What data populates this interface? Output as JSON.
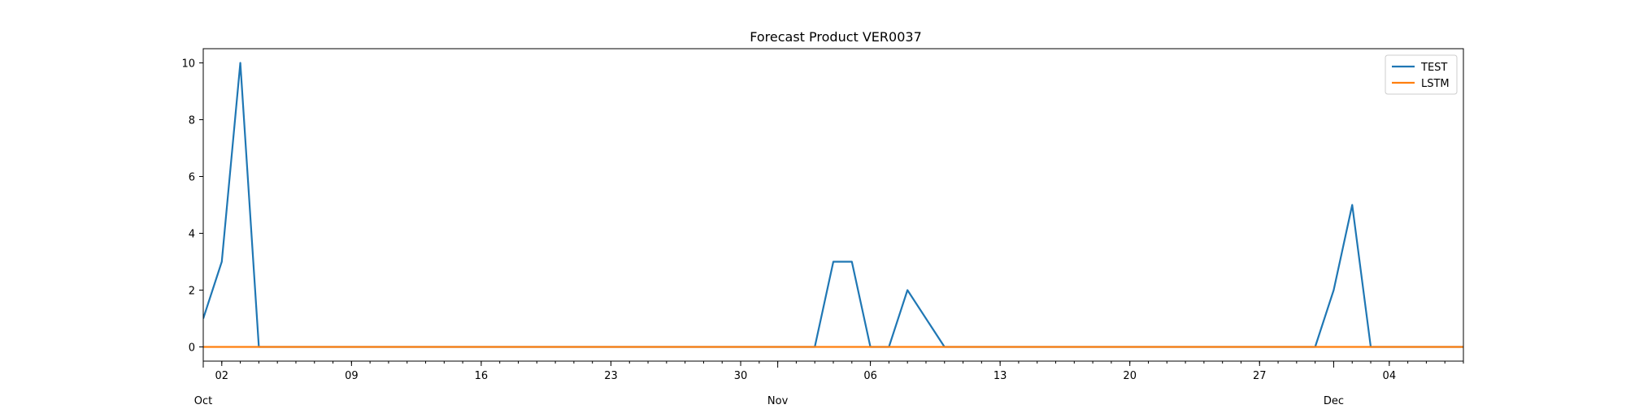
{
  "chart_data": {
    "type": "line",
    "title": "Forecast Product VER0037",
    "xlabel": "",
    "ylabel": "",
    "x_start": "2023-10-01",
    "x_end": "2023-12-08",
    "xlim": [
      "2023-10-01",
      "2023-12-08"
    ],
    "ylim": [
      -0.5,
      10.5
    ],
    "y_ticks": [
      0,
      2,
      4,
      6,
      8,
      10
    ],
    "x_major_ticks": [
      {
        "date": "2023-10-02",
        "label": "02"
      },
      {
        "date": "2023-10-09",
        "label": "09"
      },
      {
        "date": "2023-10-16",
        "label": "16"
      },
      {
        "date": "2023-10-23",
        "label": "23"
      },
      {
        "date": "2023-10-30",
        "label": "30"
      },
      {
        "date": "2023-11-06",
        "label": "06"
      },
      {
        "date": "2023-11-13",
        "label": "13"
      },
      {
        "date": "2023-11-20",
        "label": "20"
      },
      {
        "date": "2023-11-27",
        "label": "27"
      },
      {
        "date": "2023-12-04",
        "label": "04"
      }
    ],
    "month_labels": [
      {
        "date": "2023-10-01",
        "label": "Oct"
      },
      {
        "date": "2023-11-01",
        "label": "Nov"
      },
      {
        "date": "2023-12-01",
        "label": "Dec"
      }
    ],
    "grid": false,
    "legend_position": "top-right",
    "series": [
      {
        "name": "TEST",
        "color": "#1f77b4",
        "points": [
          {
            "x": "2023-10-01",
            "y": 1
          },
          {
            "x": "2023-10-02",
            "y": 3
          },
          {
            "x": "2023-10-03",
            "y": 10
          },
          {
            "x": "2023-10-04",
            "y": 0
          },
          {
            "x": "2023-11-03",
            "y": 0
          },
          {
            "x": "2023-11-04",
            "y": 3
          },
          {
            "x": "2023-11-05",
            "y": 3
          },
          {
            "x": "2023-11-06",
            "y": 0
          },
          {
            "x": "2023-11-07",
            "y": 0
          },
          {
            "x": "2023-11-08",
            "y": 2
          },
          {
            "x": "2023-11-10",
            "y": 0
          },
          {
            "x": "2023-11-30",
            "y": 0
          },
          {
            "x": "2023-12-01",
            "y": 2
          },
          {
            "x": "2023-12-02",
            "y": 5
          },
          {
            "x": "2023-12-03",
            "y": 0
          },
          {
            "x": "2023-12-08",
            "y": 0
          }
        ]
      },
      {
        "name": "LSTM",
        "color": "#ff7f0e",
        "points": [
          {
            "x": "2023-10-01",
            "y": 0
          },
          {
            "x": "2023-12-08",
            "y": 0
          }
        ]
      }
    ]
  }
}
